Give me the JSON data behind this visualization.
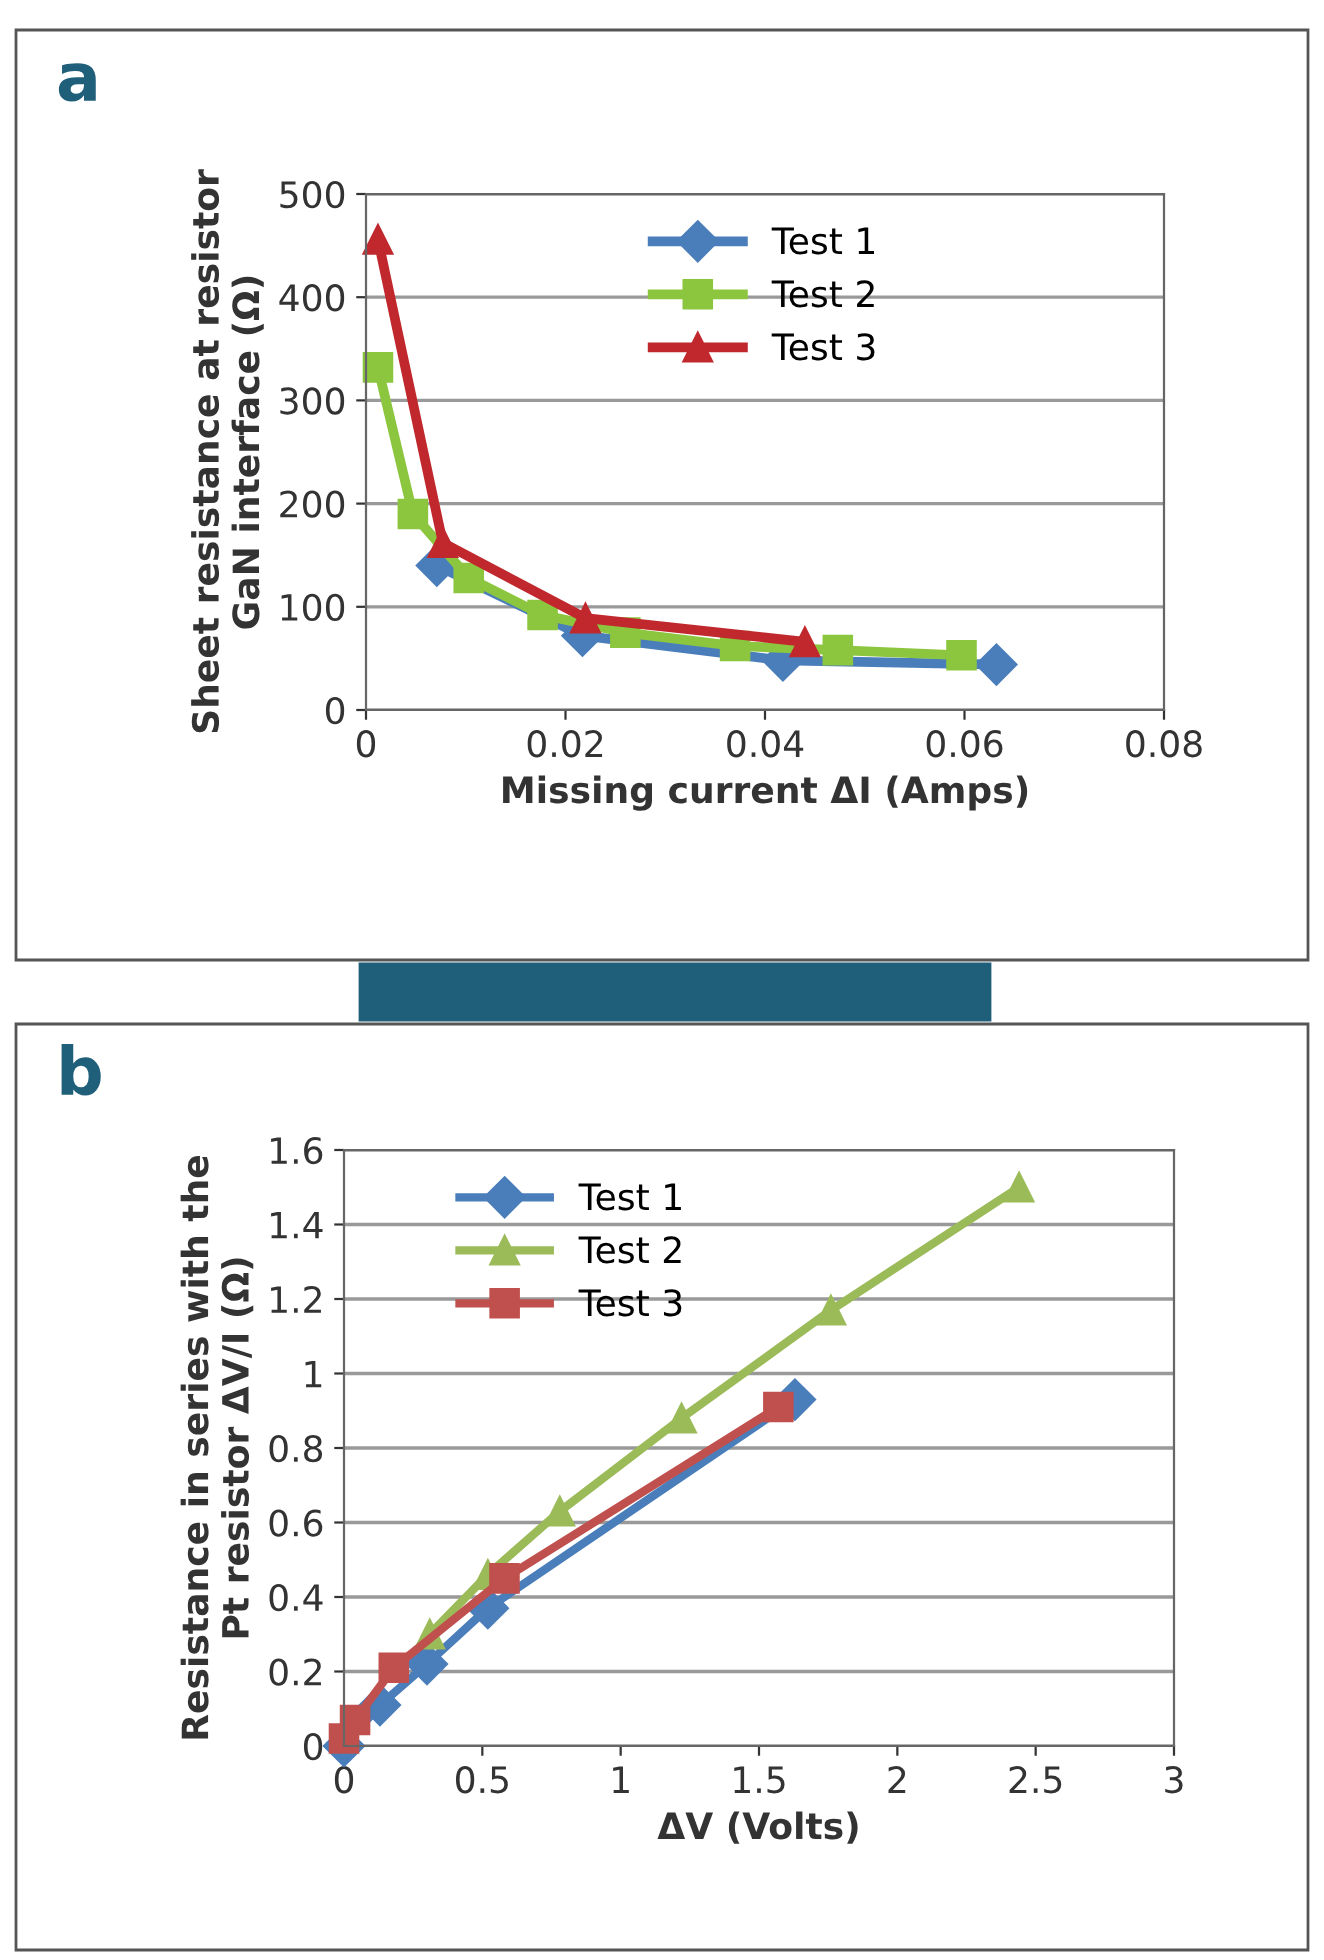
{
  "chart_data": [
    {
      "type": "line",
      "annotations": [
        "a"
      ],
      "xlabel": "Missing current ΔI (Amps)",
      "ylabel": "Sheet resistance at resistor\nGaN interface (Ω)",
      "xlim": [
        0,
        0.08
      ],
      "xticks": [
        0,
        0.02,
        0.04,
        0.06,
        0.08
      ],
      "ylim": [
        0,
        500
      ],
      "yticks": [
        0,
        100,
        200,
        300,
        400,
        500
      ],
      "grid": "y",
      "legend": "top",
      "series": [
        {
          "name": "Test 1",
          "color": "#4a7ebb",
          "marker": "diamond",
          "x": [
            0.0071,
            0.0217,
            0.0418,
            0.0632
          ],
          "values": [
            140,
            72,
            48,
            44
          ]
        },
        {
          "name": "Test 2",
          "color": "#8cc63f",
          "marker": "square",
          "x": [
            0.0012,
            0.0047,
            0.0103,
            0.0177,
            0.026,
            0.037,
            0.0473,
            0.0597
          ],
          "values": [
            332,
            190,
            128,
            92,
            75,
            62,
            58,
            53
          ]
        },
        {
          "name": "Test 3",
          "color": "#c0282d",
          "marker": "triangle",
          "x": [
            0.0012,
            0.0077,
            0.022,
            0.044
          ],
          "values": [
            456,
            162,
            89,
            66
          ]
        }
      ]
    },
    {
      "type": "line",
      "annotations": [
        "b"
      ],
      "xlabel": "ΔV (Volts)",
      "ylabel": "Resistance in series with the\nPt resistor ΔV/I (Ω)",
      "xlim": [
        0,
        3
      ],
      "xticks": [
        0,
        0.5,
        1,
        1.5,
        2,
        2.5,
        3
      ],
      "ylim": [
        0,
        1.6
      ],
      "yticks": [
        0,
        0.2,
        0.4,
        0.6,
        0.8,
        1,
        1.2,
        1.4,
        1.6
      ],
      "grid": "y",
      "legend": "top left",
      "series": [
        {
          "name": "Test 1",
          "color": "#4a7ebb",
          "marker": "diamond",
          "x": [
            0,
            0.13,
            0.3,
            0.52,
            1.63
          ],
          "values": [
            0,
            0.11,
            0.22,
            0.37,
            0.93
          ]
        },
        {
          "name": "Test 2",
          "color": "#9bbb59",
          "marker": "triangle",
          "x": [
            0.31,
            0.52,
            0.78,
            1.22,
            1.76,
            2.44
          ],
          "values": [
            0.3,
            0.46,
            0.63,
            0.88,
            1.17,
            1.5
          ]
        },
        {
          "name": "Test 3",
          "color": "#c0504d",
          "marker": "square",
          "x": [
            0,
            0.04,
            0.18,
            0.58,
            1.57
          ],
          "values": [
            0.02,
            0.07,
            0.21,
            0.45,
            0.91
          ]
        }
      ]
    }
  ]
}
